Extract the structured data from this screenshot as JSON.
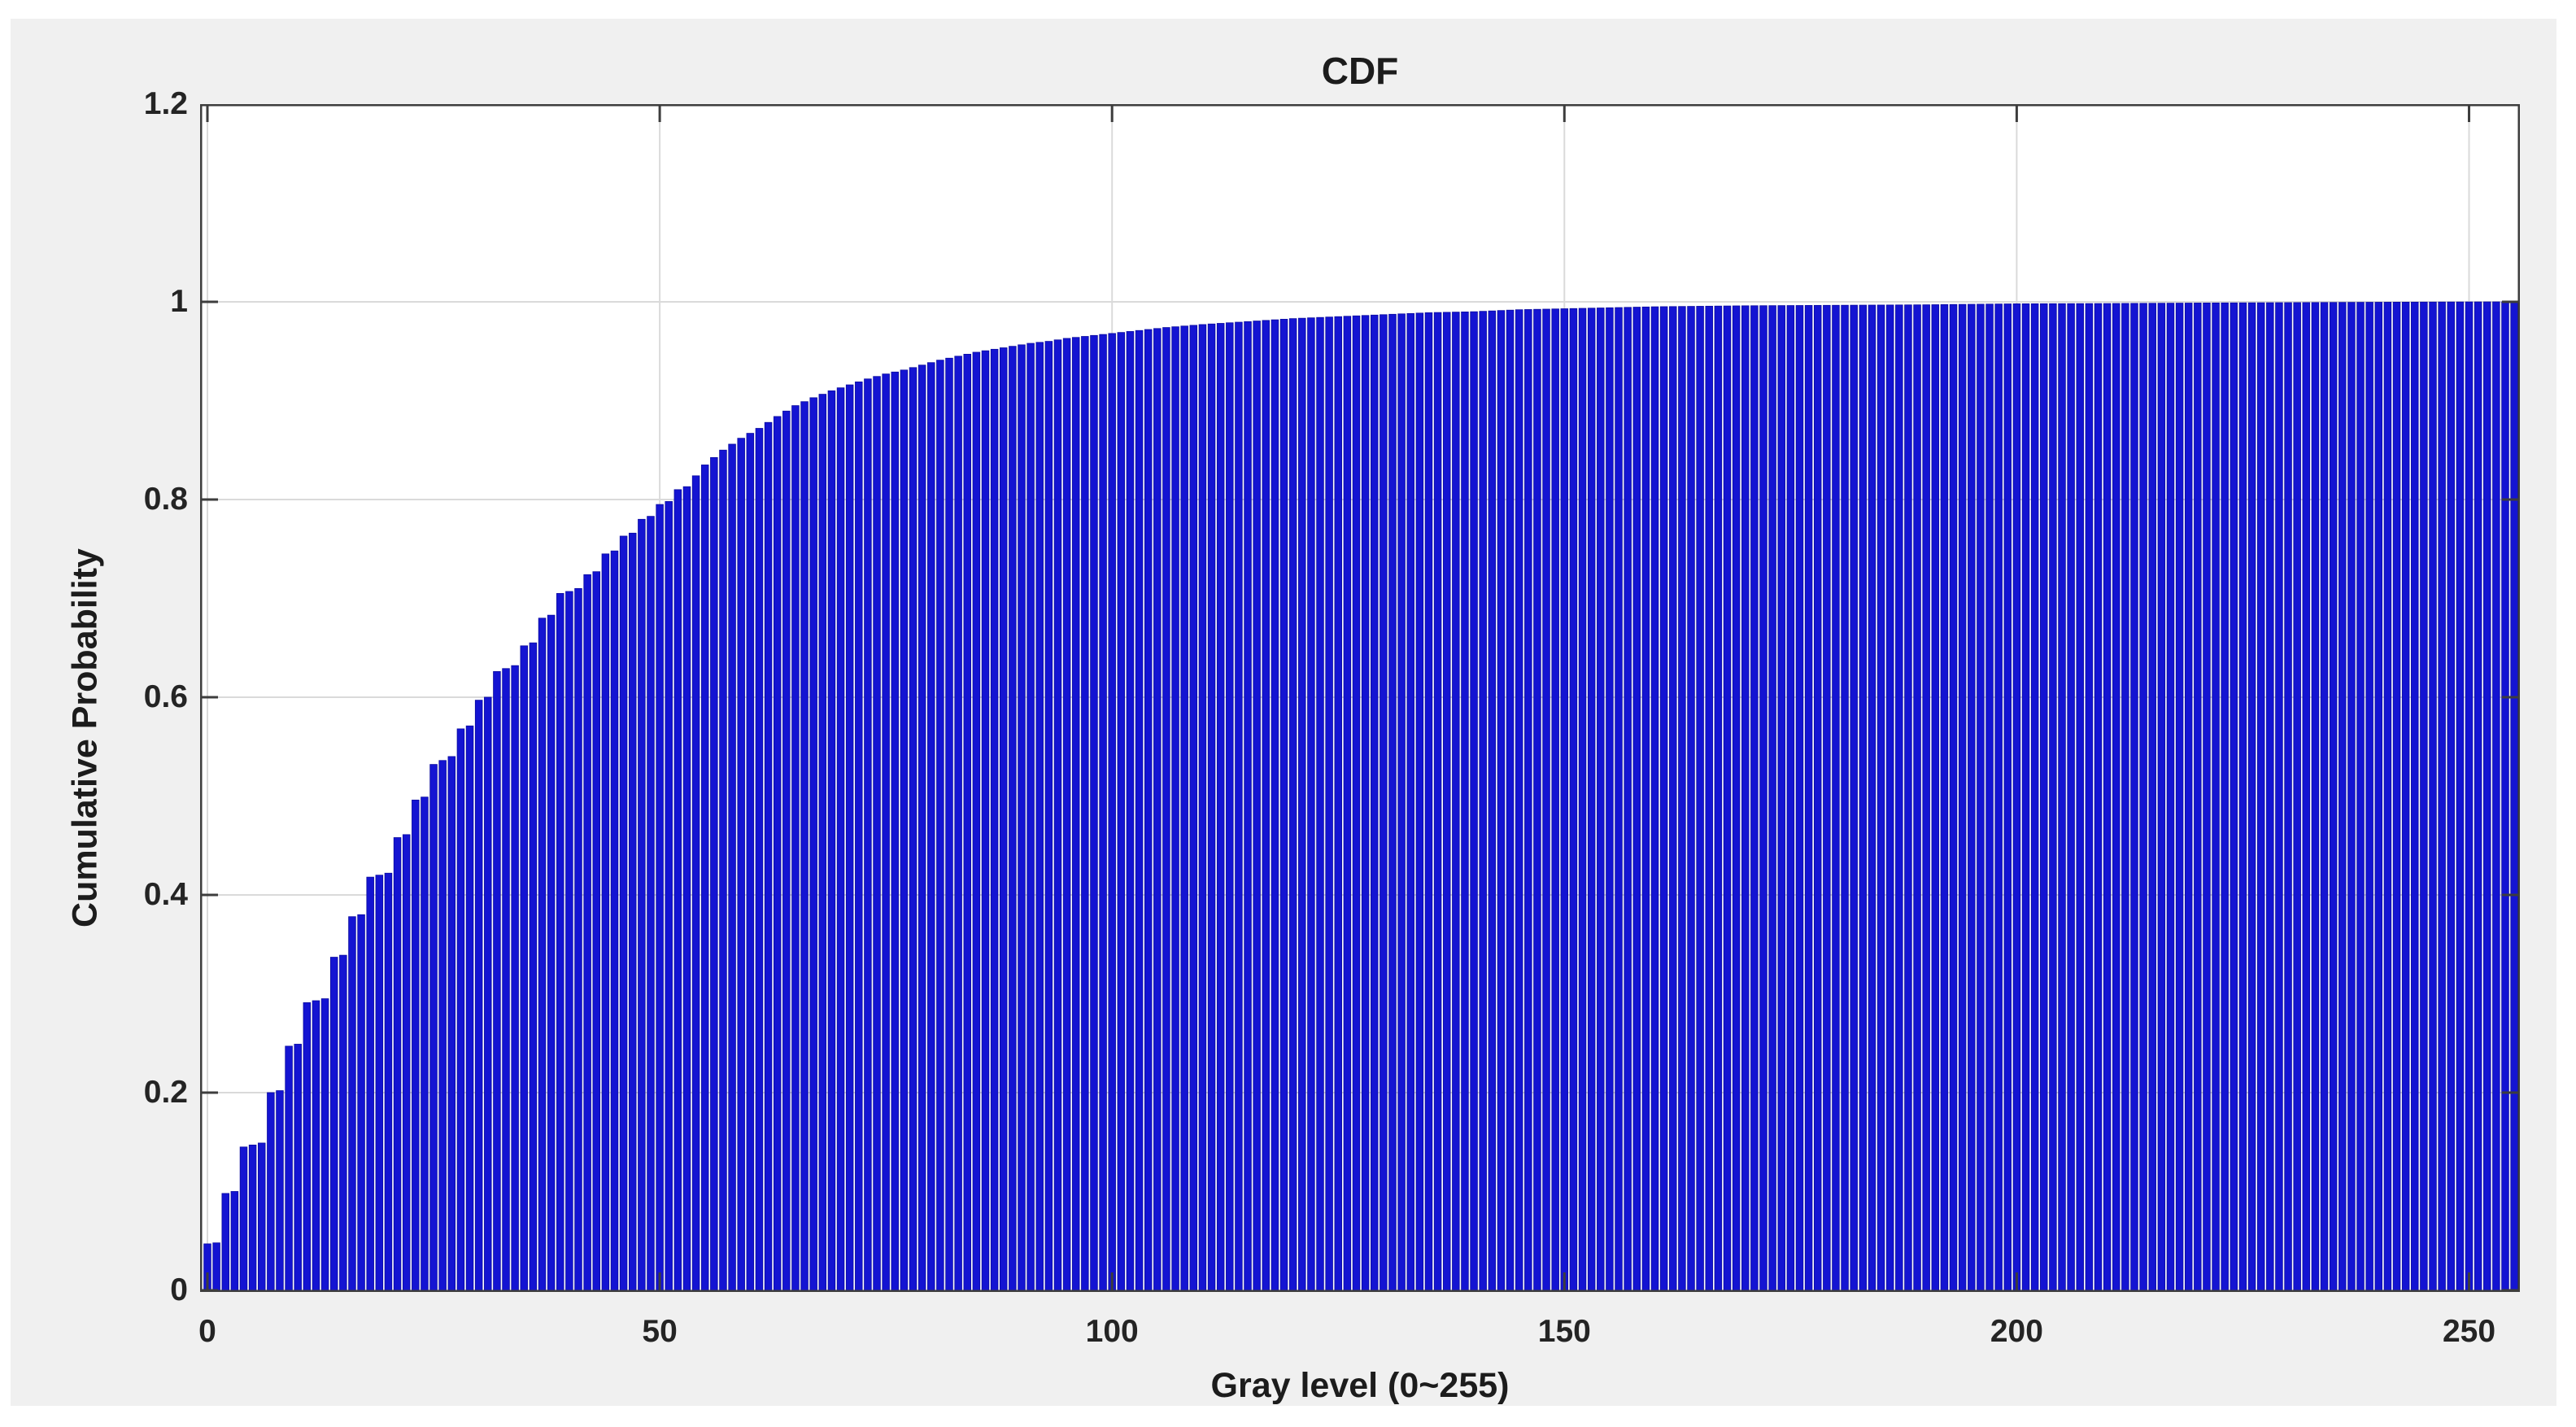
{
  "figure": {
    "background_color": "#f0f0f0",
    "plot_background_color": "#ffffff",
    "axes_border_color": "#3d3d3d",
    "grid_color": "#dadada",
    "tick_color": "#3d3d3d",
    "text_color": "#1c1c1c"
  },
  "chart_data": {
    "type": "bar",
    "title": "CDF",
    "xlabel": "Gray level (0~255)",
    "ylabel": "Cumulative Probability",
    "x_tick_labels": [
      "0",
      "50",
      "100",
      "150",
      "200",
      "250"
    ],
    "x_tick_values": [
      0,
      50,
      100,
      150,
      200,
      250
    ],
    "y_tick_labels": [
      "0",
      "0.2",
      "0.4",
      "0.6",
      "0.8",
      "1",
      "1.2"
    ],
    "y_tick_values": [
      0,
      0.2,
      0.4,
      0.6,
      0.8,
      1.0,
      1.2
    ],
    "xlim": [
      -0.8,
      255.7
    ],
    "ylim": [
      0,
      1.2
    ],
    "x_range": [
      0,
      255
    ],
    "grid": "on",
    "legend": "none",
    "bar_color": "#1414d2",
    "bar_edge_color": "#0a0aa0",
    "bar_relative_width": 0.78,
    "series": [
      {
        "name": "cumulative-probability",
        "note": "CDF values read from chart; anchors [gray_level, cumulative_probability]; bars for all 256 levels are linearly interpolated between anchors",
        "points": [
          [
            0,
            0.047
          ],
          [
            1,
            0.048
          ],
          [
            2,
            0.098
          ],
          [
            3,
            0.1
          ],
          [
            4,
            0.145
          ],
          [
            5,
            0.147
          ],
          [
            6,
            0.149
          ],
          [
            7,
            0.2
          ],
          [
            8,
            0.202
          ],
          [
            9,
            0.247
          ],
          [
            10,
            0.249
          ],
          [
            11,
            0.291
          ],
          [
            12,
            0.293
          ],
          [
            13,
            0.295
          ],
          [
            14,
            0.337
          ],
          [
            15,
            0.339
          ],
          [
            16,
            0.378
          ],
          [
            17,
            0.38
          ],
          [
            18,
            0.418
          ],
          [
            19,
            0.42
          ],
          [
            20,
            0.422
          ],
          [
            21,
            0.458
          ],
          [
            22,
            0.461
          ],
          [
            23,
            0.496
          ],
          [
            24,
            0.499
          ],
          [
            25,
            0.532
          ],
          [
            26,
            0.536
          ],
          [
            27,
            0.54
          ],
          [
            28,
            0.568
          ],
          [
            29,
            0.571
          ],
          [
            30,
            0.597
          ],
          [
            31,
            0.6
          ],
          [
            32,
            0.626
          ],
          [
            33,
            0.629
          ],
          [
            34,
            0.632
          ],
          [
            35,
            0.652
          ],
          [
            36,
            0.655
          ],
          [
            37,
            0.68
          ],
          [
            38,
            0.683
          ],
          [
            39,
            0.705
          ],
          [
            40,
            0.707
          ],
          [
            41,
            0.71
          ],
          [
            42,
            0.724
          ],
          [
            43,
            0.727
          ],
          [
            44,
            0.745
          ],
          [
            45,
            0.748
          ],
          [
            46,
            0.763
          ],
          [
            47,
            0.766
          ],
          [
            48,
            0.78
          ],
          [
            49,
            0.783
          ],
          [
            50,
            0.795
          ],
          [
            51,
            0.798
          ],
          [
            52,
            0.81
          ],
          [
            53,
            0.813
          ],
          [
            55,
            0.835
          ],
          [
            57,
            0.85
          ],
          [
            59,
            0.862
          ],
          [
            61,
            0.872
          ],
          [
            63,
            0.884
          ],
          [
            65,
            0.895
          ],
          [
            67,
            0.903
          ],
          [
            69,
            0.91
          ],
          [
            71,
            0.916
          ],
          [
            73,
            0.922
          ],
          [
            75,
            0.927
          ],
          [
            77,
            0.931
          ],
          [
            79,
            0.936
          ],
          [
            81,
            0.941
          ],
          [
            83,
            0.945
          ],
          [
            85,
            0.949
          ],
          [
            87,
            0.952
          ],
          [
            89,
            0.955
          ],
          [
            91,
            0.958
          ],
          [
            93,
            0.96
          ],
          [
            95,
            0.963
          ],
          [
            97,
            0.965
          ],
          [
            100,
            0.968
          ],
          [
            103,
            0.971
          ],
          [
            106,
            0.974
          ],
          [
            110,
            0.977
          ],
          [
            115,
            0.98
          ],
          [
            120,
            0.983
          ],
          [
            125,
            0.985
          ],
          [
            130,
            0.987
          ],
          [
            135,
            0.989
          ],
          [
            140,
            0.99
          ],
          [
            145,
            0.992
          ],
          [
            150,
            0.993
          ],
          [
            155,
            0.994
          ],
          [
            160,
            0.995
          ],
          [
            170,
            0.996
          ],
          [
            180,
            0.9965
          ],
          [
            190,
            0.997
          ],
          [
            200,
            0.998
          ],
          [
            210,
            0.9983
          ],
          [
            220,
            0.9988
          ],
          [
            230,
            0.9992
          ],
          [
            240,
            0.9996
          ],
          [
            250,
            0.9999
          ],
          [
            255,
            1.0
          ]
        ]
      }
    ]
  }
}
